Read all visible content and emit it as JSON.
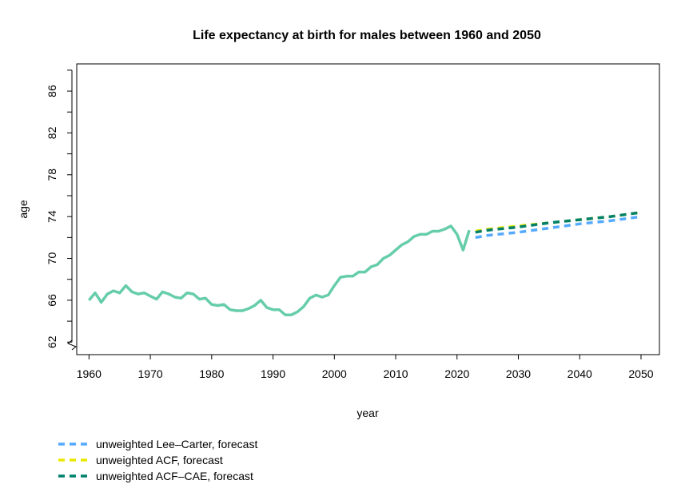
{
  "chart_data": {
    "type": "line",
    "title": "Life expectancy at birth for males between 1960 and 2050",
    "xlabel": "year",
    "ylabel": "age",
    "xlim": [
      1958,
      2053
    ],
    "ylim": [
      60.8,
      88.6
    ],
    "x_ticks": [
      1960,
      1970,
      1980,
      1990,
      2000,
      2010,
      2020,
      2030,
      2040,
      2050
    ],
    "y_ticks": [
      62,
      64,
      66,
      68,
      70,
      72,
      74,
      76,
      78,
      80,
      82,
      84,
      86,
      88
    ],
    "y_tick_labels": [
      {
        "value": 62,
        "label": "62"
      },
      {
        "value": 66,
        "label": "66"
      },
      {
        "value": 70,
        "label": "70"
      },
      {
        "value": 74,
        "label": "74"
      },
      {
        "value": 78,
        "label": "78"
      },
      {
        "value": 82,
        "label": "82"
      },
      {
        "value": 86,
        "label": "86"
      }
    ],
    "axis_break": true,
    "grid": false,
    "legend_position": "bottom-left, outside plot",
    "series": [
      {
        "style": "solid",
        "color": "#66CDAA",
        "x": [
          1960,
          1961,
          1962,
          1963,
          1964,
          1965,
          1966,
          1967,
          1968,
          1969,
          1970,
          1971,
          1972,
          1973,
          1974,
          1975,
          1976,
          1977,
          1978,
          1979,
          1980,
          1981,
          1982,
          1983,
          1984,
          1985,
          1986,
          1987,
          1988,
          1989,
          1990,
          1991,
          1992,
          1993,
          1994,
          1995,
          1996,
          1997,
          1998,
          1999,
          2000,
          2001,
          2002,
          2003,
          2004,
          2005,
          2006,
          2007,
          2008,
          2009,
          2010,
          2011,
          2012,
          2013,
          2014,
          2015,
          2016,
          2017,
          2018,
          2019,
          2020,
          2021,
          2022
        ],
        "y": [
          66.0,
          66.7,
          65.8,
          66.6,
          66.9,
          66.7,
          67.4,
          66.8,
          66.6,
          66.7,
          66.4,
          66.1,
          66.8,
          66.6,
          66.3,
          66.2,
          66.7,
          66.6,
          66.1,
          66.2,
          65.6,
          65.5,
          65.6,
          65.1,
          65.0,
          65.0,
          65.2,
          65.5,
          66.0,
          65.3,
          65.1,
          65.1,
          64.6,
          64.6,
          64.9,
          65.4,
          66.2,
          66.5,
          66.3,
          66.5,
          67.4,
          68.2,
          68.3,
          68.3,
          68.7,
          68.7,
          69.2,
          69.4,
          70.0,
          70.3,
          70.8,
          71.3,
          71.6,
          72.1,
          72.3,
          72.3,
          72.6,
          72.6,
          72.8,
          73.1,
          72.3,
          70.8,
          72.7
        ]
      },
      {
        "name": "unweighted Lee–Carter, forecast",
        "style": "dashed",
        "color": "#55AAFF",
        "x": [
          2023,
          2025,
          2030,
          2035,
          2040,
          2045,
          2050
        ],
        "y": [
          72.0,
          72.2,
          72.5,
          72.9,
          73.3,
          73.6,
          74.0
        ]
      },
      {
        "name": "unweighted ACF, forecast",
        "style": "dashed",
        "color": "#E8E800",
        "x": [
          2023,
          2025,
          2030,
          2035,
          2040,
          2045,
          2050
        ],
        "y": [
          72.6,
          72.8,
          73.1,
          73.4,
          73.7,
          74.0,
          74.4
        ]
      },
      {
        "name": "unweighted ACF–CAE, forecast",
        "style": "dashed",
        "color": "#00806A",
        "x": [
          2023,
          2025,
          2030,
          2035,
          2040,
          2045,
          2050
        ],
        "y": [
          72.5,
          72.7,
          73.0,
          73.4,
          73.7,
          74.0,
          74.4
        ]
      }
    ]
  }
}
